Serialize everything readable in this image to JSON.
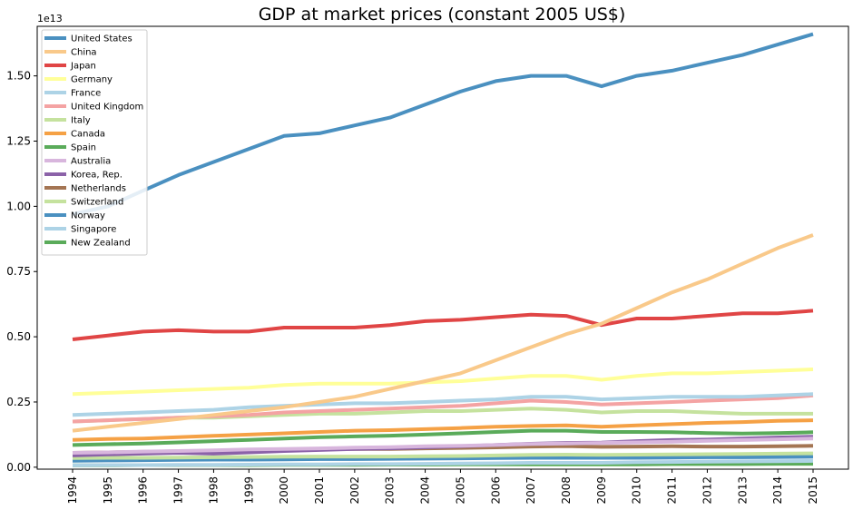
{
  "chart_data": {
    "type": "line",
    "title": "GDP at market prices (constant 2005 US$)",
    "xlabel": "",
    "ylabel": "",
    "y_offset_label": "1e13",
    "categories": [
      "1994",
      "1995",
      "1996",
      "1997",
      "1998",
      "1999",
      "2000",
      "2001",
      "2002",
      "2003",
      "2004",
      "2005",
      "2006",
      "2007",
      "2008",
      "2009",
      "2010",
      "2011",
      "2012",
      "2013",
      "2014",
      "2015"
    ],
    "y_ticks": [
      0.0,
      0.25,
      0.5,
      0.75,
      1.0,
      1.25,
      1.5
    ],
    "y_tick_labels": [
      "0.00",
      "0.25",
      "0.50",
      "0.75",
      "1.00",
      "1.25",
      "1.50"
    ],
    "ylim": [
      -0.0075,
      1.69
    ],
    "grid": false,
    "legend_position": "top-left",
    "series": [
      {
        "name": "United States",
        "color": "#4a90c0",
        "values": [
          0.97,
          1.0,
          1.06,
          1.12,
          1.17,
          1.22,
          1.27,
          1.28,
          1.31,
          1.34,
          1.39,
          1.44,
          1.48,
          1.5,
          1.5,
          1.46,
          1.5,
          1.52,
          1.55,
          1.58,
          1.62,
          1.66
        ]
      },
      {
        "name": "China",
        "color": "#f9c98a",
        "values": [
          0.14,
          0.155,
          0.17,
          0.185,
          0.2,
          0.215,
          0.23,
          0.25,
          0.27,
          0.3,
          0.33,
          0.36,
          0.41,
          0.46,
          0.51,
          0.55,
          0.61,
          0.67,
          0.72,
          0.78,
          0.84,
          0.89
        ]
      },
      {
        "name": "Japan",
        "color": "#e04545",
        "values": [
          0.49,
          0.505,
          0.52,
          0.525,
          0.52,
          0.52,
          0.535,
          0.535,
          0.535,
          0.545,
          0.56,
          0.565,
          0.575,
          0.585,
          0.58,
          0.545,
          0.57,
          0.57,
          0.58,
          0.59,
          0.59,
          0.6
        ]
      },
      {
        "name": "Germany",
        "color": "#ffff99",
        "values": [
          0.28,
          0.285,
          0.29,
          0.295,
          0.3,
          0.305,
          0.315,
          0.32,
          0.32,
          0.32,
          0.325,
          0.33,
          0.34,
          0.35,
          0.35,
          0.335,
          0.35,
          0.36,
          0.36,
          0.365,
          0.37,
          0.375
        ]
      },
      {
        "name": "France",
        "color": "#add3e6",
        "values": [
          0.2,
          0.205,
          0.21,
          0.215,
          0.22,
          0.23,
          0.235,
          0.24,
          0.245,
          0.245,
          0.25,
          0.255,
          0.26,
          0.27,
          0.27,
          0.26,
          0.265,
          0.27,
          0.27,
          0.27,
          0.275,
          0.28
        ]
      },
      {
        "name": "United Kingdom",
        "color": "#f4a3a3",
        "values": [
          0.175,
          0.18,
          0.185,
          0.19,
          0.195,
          0.2,
          0.21,
          0.215,
          0.22,
          0.225,
          0.23,
          0.235,
          0.245,
          0.255,
          0.25,
          0.24,
          0.245,
          0.25,
          0.255,
          0.26,
          0.265,
          0.275
        ]
      },
      {
        "name": "Italy",
        "color": "#c5e29e",
        "values": [
          0.175,
          0.18,
          0.185,
          0.19,
          0.19,
          0.195,
          0.2,
          0.205,
          0.205,
          0.21,
          0.215,
          0.215,
          0.22,
          0.225,
          0.22,
          0.21,
          0.215,
          0.215,
          0.21,
          0.205,
          0.205,
          0.205
        ]
      },
      {
        "name": "Canada",
        "color": "#f5a145",
        "values": [
          0.105,
          0.108,
          0.11,
          0.115,
          0.12,
          0.125,
          0.13,
          0.135,
          0.14,
          0.142,
          0.146,
          0.15,
          0.155,
          0.158,
          0.16,
          0.155,
          0.16,
          0.165,
          0.17,
          0.173,
          0.178,
          0.18
        ]
      },
      {
        "name": "Spain",
        "color": "#5aab5a",
        "values": [
          0.085,
          0.088,
          0.091,
          0.095,
          0.1,
          0.105,
          0.11,
          0.115,
          0.118,
          0.121,
          0.125,
          0.13,
          0.135,
          0.14,
          0.14,
          0.135,
          0.135,
          0.134,
          0.131,
          0.129,
          0.131,
          0.134
        ]
      },
      {
        "name": "Australia",
        "color": "#d8b6dd",
        "values": [
          0.055,
          0.057,
          0.06,
          0.062,
          0.065,
          0.068,
          0.07,
          0.072,
          0.075,
          0.077,
          0.08,
          0.082,
          0.085,
          0.089,
          0.091,
          0.093,
          0.095,
          0.098,
          0.101,
          0.104,
          0.107,
          0.11
        ]
      },
      {
        "name": "Korea, Rep.",
        "color": "#8b62a8",
        "values": [
          0.045,
          0.049,
          0.052,
          0.055,
          0.052,
          0.057,
          0.062,
          0.066,
          0.07,
          0.072,
          0.076,
          0.08,
          0.085,
          0.09,
          0.093,
          0.094,
          0.1,
          0.104,
          0.106,
          0.11,
          0.114,
          0.117
        ]
      },
      {
        "name": "Netherlands",
        "color": "#a47553",
        "values": [
          0.055,
          0.057,
          0.059,
          0.061,
          0.063,
          0.066,
          0.068,
          0.07,
          0.07,
          0.07,
          0.072,
          0.074,
          0.076,
          0.079,
          0.081,
          0.078,
          0.079,
          0.08,
          0.079,
          0.079,
          0.08,
          0.082
        ]
      },
      {
        "name": "Switzerland",
        "color": "#c5e29e",
        "values": [
          0.035,
          0.036,
          0.036,
          0.037,
          0.038,
          0.039,
          0.04,
          0.041,
          0.041,
          0.041,
          0.042,
          0.043,
          0.045,
          0.047,
          0.048,
          0.047,
          0.048,
          0.049,
          0.05,
          0.051,
          0.052,
          0.053
        ]
      },
      {
        "name": "Norway",
        "color": "#4a90c0",
        "values": [
          0.025,
          0.026,
          0.027,
          0.028,
          0.029,
          0.029,
          0.03,
          0.031,
          0.031,
          0.032,
          0.033,
          0.034,
          0.035,
          0.036,
          0.036,
          0.036,
          0.036,
          0.037,
          0.038,
          0.038,
          0.039,
          0.04
        ]
      },
      {
        "name": "Singapore",
        "color": "#add3e6",
        "values": [
          0.007,
          0.008,
          0.008,
          0.009,
          0.009,
          0.01,
          0.011,
          0.011,
          0.012,
          0.012,
          0.013,
          0.014,
          0.015,
          0.017,
          0.017,
          0.017,
          0.019,
          0.02,
          0.021,
          0.022,
          0.023,
          0.024
        ]
      },
      {
        "name": "New Zealand",
        "color": "#5aab5a",
        "values": [
          0.007,
          0.007,
          0.008,
          0.008,
          0.008,
          0.008,
          0.009,
          0.009,
          0.009,
          0.01,
          0.01,
          0.011,
          0.011,
          0.011,
          0.011,
          0.011,
          0.011,
          0.012,
          0.012,
          0.012,
          0.013,
          0.013
        ]
      }
    ]
  }
}
